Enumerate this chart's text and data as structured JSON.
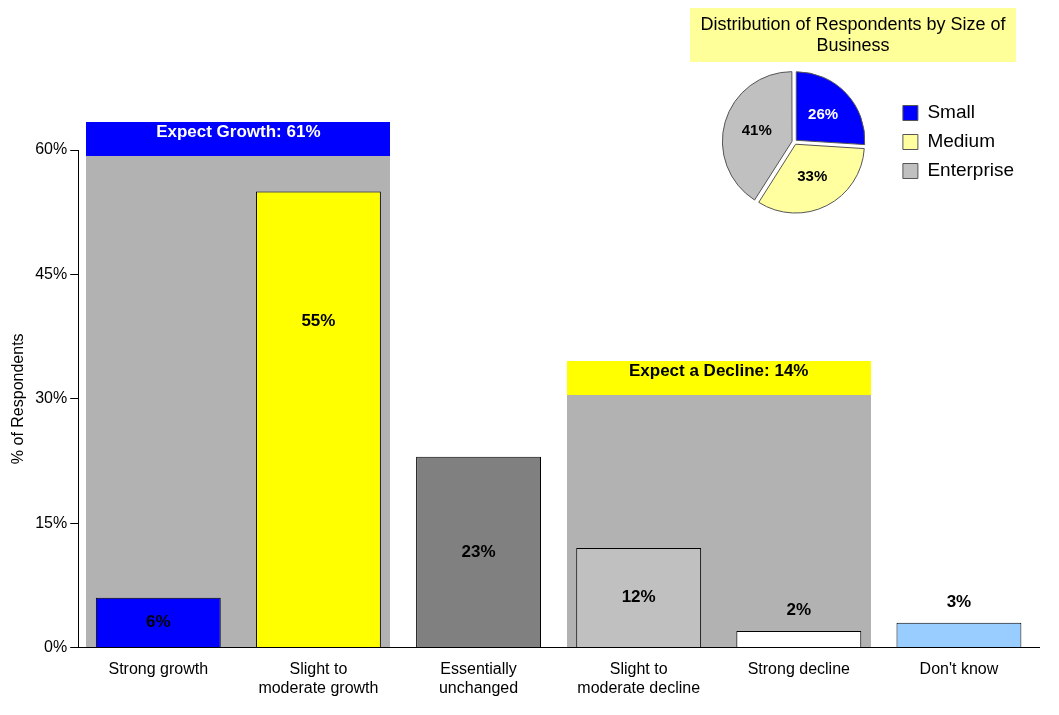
{
  "chart_data": [
    {
      "type": "bar",
      "ylabel": "% of Respondents",
      "categories": [
        "Strong growth",
        "Slight to moderate growth",
        "Essentially unchanged",
        "Slight to moderate decline",
        "Strong decline",
        "Don't know"
      ],
      "values": [
        6,
        55,
        23,
        12,
        2,
        3
      ],
      "colors": [
        "#0000ff",
        "#ffff00",
        "#808080",
        "#c0c0c0",
        "#ffffff",
        "#99ccff"
      ],
      "value_labels": [
        "6%",
        "55%",
        "23%",
        "12%",
        "2%",
        "3%"
      ],
      "ylim": [
        0,
        60
      ],
      "yticks": [
        {
          "value": 0,
          "label": "0%"
        },
        {
          "value": 15,
          "label": "15%"
        },
        {
          "value": 30,
          "label": "30%"
        },
        {
          "value": 45,
          "label": "45%"
        },
        {
          "value": 60,
          "label": "60%"
        }
      ],
      "annotations": [
        "Expect Growth: 61%",
        "Expect a Decline: 14%"
      ],
      "grid": false,
      "legend": false
    },
    {
      "type": "pie",
      "title": "Distribution of Respondents by Size of Business",
      "categories": [
        "Small",
        "Medium",
        "Enterprise"
      ],
      "values": [
        26,
        33,
        41
      ],
      "colors": [
        "#0000ff",
        "#ffffa0",
        "#c0c0c0"
      ],
      "value_labels": [
        "26%",
        "33%",
        "41%"
      ],
      "legend": "right"
    }
  ]
}
